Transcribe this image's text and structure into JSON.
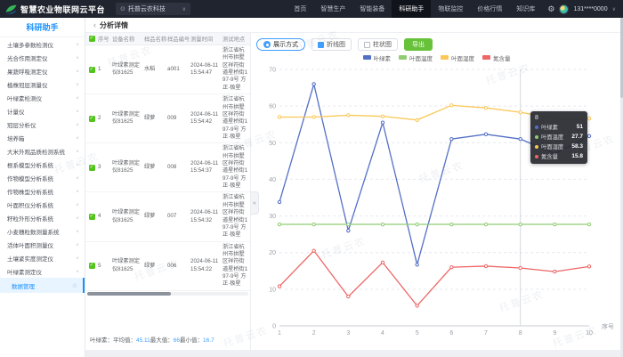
{
  "icons": {
    "check": "✓",
    "star": "☆",
    "chevron_down": "∨",
    "chevron_up": "∧",
    "collapse": "«",
    "gear": "⚙",
    "pin": "⊙",
    "caret": "∨",
    "back": "‹"
  },
  "header": {
    "logo_title": "智慧农业物联网云平台",
    "org": "托普云农科技",
    "nav": [
      "首页",
      "智慧生产",
      "智能装备",
      "科研助手",
      "物联监控",
      "价格行情",
      "知识库"
    ],
    "active_nav": "科研助手",
    "user": "131****0000"
  },
  "sidebar": {
    "title": "科研助手",
    "items": [
      "土壤多参数检测仪",
      "光合作用测定仪",
      "果蔬呼吸测定仪",
      "植株冠层测量仪",
      "叶绿素检测仪",
      "计量仪",
      "冠层分析仪",
      "培养箱",
      "大米外观品质检测系统",
      "根系模型分析系统",
      "作物模型分析系统",
      "作物株型分析系统",
      "叶面积仪分析系统",
      "籽粒外形分析系统",
      "小麦穗粒数测量系统",
      "活体叶面积测量仪",
      "土壤紧实度测定仪",
      "叶绿素测定仪"
    ],
    "expanded_index": 17,
    "sub_item": "数据管理"
  },
  "breadcrumb": {
    "title": "分析详情"
  },
  "table": {
    "headers": [
      "序号",
      "设备名称",
      "样品名称",
      "样品编号",
      "测量时间",
      "测试地点"
    ],
    "rows": [
      {
        "no": "1",
        "device": "叶绿素测定仪81625",
        "sample": "水稻",
        "code": "a001",
        "time": "2024-06-11 15:54:47",
        "location": "浙江省杭州市拱墅区祥符街道星桥街197-9号 方正·极星"
      },
      {
        "no": "2",
        "device": "叶绿素测定仪81625",
        "sample": "绿萝",
        "code": "009",
        "time": "2024-06-11 15:54:42",
        "location": "浙江省杭州市拱墅区祥符街道星桥街197-9号 方正·极星"
      },
      {
        "no": "3",
        "device": "叶绿素测定仪81625",
        "sample": "绿萝",
        "code": "008",
        "time": "2024-06-11 15:54:37",
        "location": "浙江省杭州市拱墅区祥符街道星桥街197-9号 方正·极星"
      },
      {
        "no": "4",
        "device": "叶绿素测定仪81625",
        "sample": "绿萝",
        "code": "007",
        "time": "2024-06-11 15:54:32",
        "location": "浙江省杭州市拱墅区祥符街道星桥街197-9号 方正·极星"
      },
      {
        "no": "5",
        "device": "叶绿素测定仪81625",
        "sample": "绿萝",
        "code": "006",
        "time": "2024-06-11 15:54:22",
        "location": "浙江省杭州市拱墅区祥符街道星桥街197-9号 方正·极星"
      }
    ],
    "summary": {
      "label": "叶绿素：",
      "avg_label": "平均值：",
      "avg": "45.11",
      "max_label": "最大值：",
      "max": "66",
      "min_label": "最小值：",
      "min": "16.7"
    }
  },
  "controls": {
    "display_mode": "展示方式",
    "line_chart": "折线图",
    "bar_chart": "柱状图",
    "export": "导出",
    "line_selected": true,
    "bar_selected": false
  },
  "chart_data": {
    "type": "line",
    "x": [
      1,
      2,
      3,
      4,
      5,
      6,
      7,
      8,
      9,
      10
    ],
    "xlabel": "序号",
    "ylim": [
      0,
      70
    ],
    "yticks": [
      0,
      10,
      20,
      30,
      40,
      50,
      60,
      70
    ],
    "grid": true,
    "legend_position": "top",
    "series": [
      {
        "name": "叶绿素",
        "color": "#5470c6",
        "values": [
          33.8,
          66,
          26,
          55.5,
          16.7,
          51,
          52.3,
          51,
          47,
          51.8
        ]
      },
      {
        "name": "叶面温度",
        "color": "#91cc75",
        "values": [
          27.7,
          27.7,
          27.7,
          27.7,
          27.7,
          27.7,
          27.7,
          27.7,
          27.7,
          27.7
        ]
      },
      {
        "name": "叶面湿度",
        "color": "#fac858",
        "values": [
          57,
          57,
          57.5,
          57.2,
          56.2,
          60.2,
          59.5,
          58.3,
          56.6,
          56.6
        ]
      },
      {
        "name": "氮含量",
        "color": "#ee6666",
        "values": [
          10.8,
          20.5,
          8,
          17.3,
          5.5,
          16,
          16.3,
          15.8,
          14.8,
          16.2
        ]
      }
    ],
    "axis_pointer_x": 8,
    "tooltip": {
      "title": "8",
      "rows": [
        {
          "name": "叶绿素",
          "value": "51",
          "color": "#5470c6"
        },
        {
          "name": "叶面温度",
          "value": "27.7",
          "color": "#91cc75"
        },
        {
          "name": "叶面湿度",
          "value": "58.3",
          "color": "#fac858"
        },
        {
          "name": "氮含量",
          "value": "15.8",
          "color": "#ee6666"
        }
      ]
    }
  },
  "watermark": "托普云农"
}
